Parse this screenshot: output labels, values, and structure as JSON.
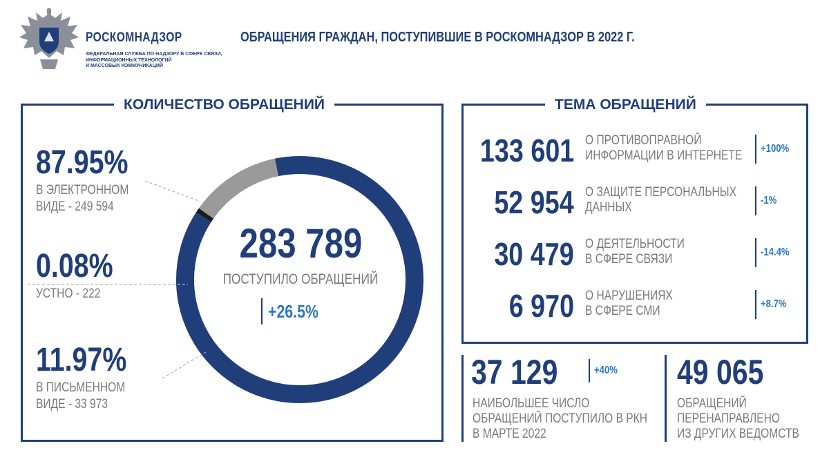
{
  "header": {
    "org_name": "РОСКОМНАДЗОР",
    "org_sub": [
      "ФЕДЕРАЛЬНАЯ СЛУЖБА ПО НАДЗОРУ В СФЕРЕ СВЯЗИ,",
      "ИНФОРМАЦИОННЫХ ТЕХНОЛОГИЙ",
      "И МАССОВЫХ КОММУНИКАЦИЙ"
    ],
    "title": "ОБРАЩЕНИЯ ГРАЖДАН, ПОСТУПИВШИЕ В РОСКОМНАДЗОР В 2022 Г."
  },
  "count_panel": {
    "title": "КОЛИЧЕСТВО ОБРАЩЕНИЙ",
    "total_value": "283 789",
    "total_label": "ПОСТУПИЛО ОБРАЩЕНИЙ",
    "total_change": "+26.5%",
    "items": [
      {
        "percent": "87.95%",
        "label_lines": [
          "В ЭЛЕКТРОННОМ",
          "ВИДЕ - 249 594"
        ]
      },
      {
        "percent": "0.08%",
        "label_lines": [
          "УСТНО - 222"
        ]
      },
      {
        "percent": "11.97%",
        "label_lines": [
          "В ПИСЬМЕННОМ",
          "ВИДЕ - 33 973"
        ]
      }
    ]
  },
  "topic_panel": {
    "title": "ТЕМА ОБРАЩЕНИЙ",
    "rows": [
      {
        "value": "133 601",
        "text_lines": [
          "О ПРОТИВОПРАВНОЙ",
          "ИНФОРМАЦИИ В ИНТЕРНЕТЕ"
        ],
        "change": "+100%"
      },
      {
        "value": "52 954",
        "text_lines": [
          "О ЗАЩИТЕ ПЕРСОНАЛЬНЫХ",
          "ДАННЫХ"
        ],
        "change": "-1%"
      },
      {
        "value": "30 479",
        "text_lines": [
          "О ДЕЯТЕЛЬНОСТИ",
          "В СФЕРЕ СВЯЗИ"
        ],
        "change": "-14.4%"
      },
      {
        "value": "6 970",
        "text_lines": [
          "О НАРУШЕНИЯХ",
          "В СФЕРЕ СМИ"
        ],
        "change": "+8.7%"
      }
    ]
  },
  "stats": {
    "march": {
      "value": "37 129",
      "change": "+40%",
      "text_lines": [
        "НАИБОЛЬШЕЕ ЧИСЛО",
        "ОБРАЩЕНИЙ ПОСТУПИЛО В РКН",
        "В МАРТЕ 2022"
      ]
    },
    "redirected": {
      "value": "49 065",
      "text_lines": [
        "ОБРАЩЕНИЙ",
        "ПЕРЕНАПРАВЛЕНО",
        "ИЗ ДРУГИХ ВЕДОМСТВ"
      ]
    }
  },
  "colors": {
    "primary": "#1f3e7a",
    "accent": "#2b78c2",
    "muted": "#7a7a7a",
    "ring_gray": "#9a9a9a",
    "ring_dark": "#1a1a1a"
  },
  "chart_data": {
    "type": "pie",
    "style": "donut",
    "categories": [
      "В ЭЛЕКТРОННОМ ВИДЕ",
      "УСТНО",
      "В ПИСЬМЕННОМ ВИДЕ"
    ],
    "values": [
      249594,
      222,
      33973
    ],
    "percents": [
      87.95,
      0.08,
      11.97
    ],
    "total": 283789
  }
}
